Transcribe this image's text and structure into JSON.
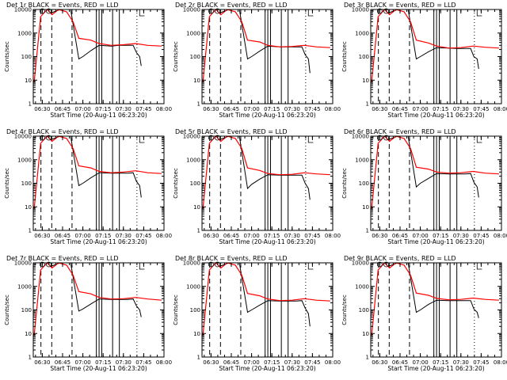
{
  "chart_data": {
    "type": "line",
    "shared": {
      "ylabel": "Counts/sec",
      "xlabel": "Start Time (20-Aug-11 06:23:20)",
      "ylog": true,
      "ylim": [
        1,
        10000
      ],
      "yticks": [
        "1",
        "10",
        "100",
        "1000",
        "10000"
      ],
      "xlim_minutes": [
        "06:23:20",
        "08:00"
      ],
      "xticks": [
        "06:30",
        "06:45",
        "07:00",
        "07:15",
        "07:30",
        "07:45",
        "08:00"
      ],
      "colors": {
        "events": "#000000",
        "lld": "#ff0000",
        "axes": "#000000"
      },
      "grid": false
    },
    "panels": [
      {
        "title": "Det 1r BLACK = Events, RED = LLD",
        "dashed_x": [
          "06:29",
          "06:37",
          "06:52"
        ],
        "solid_x": [
          "07:10",
          "07:12",
          "07:14",
          "07:22",
          "07:27"
        ],
        "dotted_x": [
          "07:40"
        ],
        "events": [
          [
            6.6,
            7000
          ],
          [
            6.72,
            10000
          ],
          [
            6.85,
            10000
          ],
          [
            6.95,
            80
          ],
          [
            7.0,
            100
          ],
          [
            7.1,
            180
          ],
          [
            7.2,
            300
          ],
          [
            7.35,
            280
          ],
          [
            7.45,
            300
          ],
          [
            7.55,
            300
          ],
          [
            7.62,
            300
          ],
          [
            7.66,
            150
          ],
          [
            7.7,
            100
          ],
          [
            7.72,
            40
          ]
        ],
        "lld": [
          [
            6.4,
            8
          ],
          [
            6.48,
            5000
          ],
          [
            6.56,
            10000
          ],
          [
            6.62,
            6000
          ],
          [
            6.7,
            10000
          ],
          [
            6.8,
            8000
          ],
          [
            6.88,
            3000
          ],
          [
            6.95,
            600
          ],
          [
            7.1,
            500
          ],
          [
            7.2,
            360
          ],
          [
            7.35,
            300
          ],
          [
            7.5,
            320
          ],
          [
            7.65,
            360
          ],
          [
            7.8,
            300
          ],
          [
            7.97,
            280
          ]
        ]
      },
      {
        "title": "Det 2r BLACK = Events, RED = LLD",
        "dashed_x": [
          "06:29",
          "06:37",
          "06:52"
        ],
        "solid_x": [
          "07:10",
          "07:12",
          "07:14",
          "07:22",
          "07:27"
        ],
        "dotted_x": [
          "07:40"
        ],
        "events": [
          [
            6.6,
            7000
          ],
          [
            6.72,
            10000
          ],
          [
            6.85,
            10000
          ],
          [
            6.95,
            80
          ],
          [
            7.0,
            100
          ],
          [
            7.1,
            170
          ],
          [
            7.2,
            280
          ],
          [
            7.35,
            260
          ],
          [
            7.45,
            260
          ],
          [
            7.55,
            260
          ],
          [
            7.62,
            260
          ],
          [
            7.66,
            120
          ],
          [
            7.7,
            80
          ],
          [
            7.72,
            20
          ]
        ],
        "lld": [
          [
            6.4,
            8
          ],
          [
            6.48,
            5000
          ],
          [
            6.56,
            10000
          ],
          [
            6.62,
            6000
          ],
          [
            6.7,
            10000
          ],
          [
            6.8,
            8000
          ],
          [
            6.88,
            3000
          ],
          [
            6.95,
            500
          ],
          [
            7.1,
            420
          ],
          [
            7.2,
            300
          ],
          [
            7.35,
            260
          ],
          [
            7.5,
            270
          ],
          [
            7.65,
            300
          ],
          [
            7.8,
            260
          ],
          [
            7.97,
            240
          ]
        ]
      },
      {
        "title": "Det 3r BLACK = Events, RED = LLD",
        "dashed_x": [
          "06:29",
          "06:37",
          "06:52"
        ],
        "solid_x": [
          "07:10",
          "07:12",
          "07:14",
          "07:22",
          "07:27"
        ],
        "dotted_x": [
          "07:40"
        ],
        "events": [
          [
            6.6,
            7000
          ],
          [
            6.72,
            10000
          ],
          [
            6.85,
            10000
          ],
          [
            6.95,
            80
          ],
          [
            7.0,
            100
          ],
          [
            7.1,
            160
          ],
          [
            7.2,
            240
          ],
          [
            7.35,
            230
          ],
          [
            7.45,
            220
          ],
          [
            7.55,
            220
          ],
          [
            7.62,
            220
          ],
          [
            7.66,
            100
          ],
          [
            7.7,
            80
          ],
          [
            7.72,
            30
          ]
        ],
        "lld": [
          [
            6.4,
            8
          ],
          [
            6.48,
            5000
          ],
          [
            6.56,
            10000
          ],
          [
            6.62,
            6000
          ],
          [
            6.7,
            10000
          ],
          [
            6.8,
            8000
          ],
          [
            6.88,
            3000
          ],
          [
            6.95,
            500
          ],
          [
            7.1,
            380
          ],
          [
            7.2,
            280
          ],
          [
            7.35,
            230
          ],
          [
            7.5,
            240
          ],
          [
            7.65,
            280
          ],
          [
            7.8,
            250
          ],
          [
            7.97,
            230
          ]
        ]
      },
      {
        "title": "Det 4r BLACK = Events, RED = LLD",
        "dashed_x": [
          "06:29",
          "06:37",
          "06:52"
        ],
        "solid_x": [
          "07:10",
          "07:12",
          "07:14",
          "07:22",
          "07:27"
        ],
        "dotted_x": [
          "07:40"
        ],
        "events": [
          [
            6.6,
            7000
          ],
          [
            6.72,
            10000
          ],
          [
            6.85,
            10000
          ],
          [
            6.95,
            80
          ],
          [
            7.0,
            100
          ],
          [
            7.1,
            170
          ],
          [
            7.2,
            280
          ],
          [
            7.35,
            270
          ],
          [
            7.45,
            270
          ],
          [
            7.55,
            270
          ],
          [
            7.62,
            280
          ],
          [
            7.66,
            120
          ],
          [
            7.7,
            80
          ],
          [
            7.72,
            25
          ]
        ],
        "lld": [
          [
            6.4,
            8
          ],
          [
            6.48,
            5000
          ],
          [
            6.56,
            10000
          ],
          [
            6.62,
            6000
          ],
          [
            6.7,
            10000
          ],
          [
            6.8,
            8000
          ],
          [
            6.88,
            3000
          ],
          [
            6.95,
            550
          ],
          [
            7.1,
            450
          ],
          [
            7.2,
            320
          ],
          [
            7.35,
            280
          ],
          [
            7.5,
            300
          ],
          [
            7.65,
            340
          ],
          [
            7.8,
            280
          ],
          [
            7.97,
            260
          ]
        ]
      },
      {
        "title": "Det 5r BLACK = Events, RED = LLD",
        "dashed_x": [
          "06:29",
          "06:37",
          "06:52"
        ],
        "solid_x": [
          "07:10",
          "07:12",
          "07:14",
          "07:22",
          "07:27"
        ],
        "dotted_x": [
          "07:40"
        ],
        "events": [
          [
            6.6,
            7000
          ],
          [
            6.72,
            10000
          ],
          [
            6.85,
            10000
          ],
          [
            6.95,
            60
          ],
          [
            7.0,
            90
          ],
          [
            7.1,
            150
          ],
          [
            7.2,
            230
          ],
          [
            7.35,
            220
          ],
          [
            7.45,
            220
          ],
          [
            7.55,
            220
          ],
          [
            7.62,
            220
          ],
          [
            7.66,
            100
          ],
          [
            7.7,
            60
          ],
          [
            7.72,
            20
          ]
        ],
        "lld": [
          [
            6.4,
            8
          ],
          [
            6.48,
            5000
          ],
          [
            6.56,
            10000
          ],
          [
            6.62,
            6000
          ],
          [
            6.7,
            10000
          ],
          [
            6.8,
            8000
          ],
          [
            6.88,
            3000
          ],
          [
            6.95,
            450
          ],
          [
            7.1,
            350
          ],
          [
            7.2,
            260
          ],
          [
            7.35,
            230
          ],
          [
            7.5,
            240
          ],
          [
            7.65,
            280
          ],
          [
            7.8,
            250
          ],
          [
            7.97,
            230
          ]
        ]
      },
      {
        "title": "Det 6r BLACK = Events, RED = LLD",
        "dashed_x": [
          "06:29",
          "06:37",
          "06:52"
        ],
        "solid_x": [
          "07:10",
          "07:12",
          "07:14",
          "07:22",
          "07:27"
        ],
        "dotted_x": [
          "07:40"
        ],
        "events": [
          [
            6.6,
            7000
          ],
          [
            6.72,
            10000
          ],
          [
            6.85,
            10000
          ],
          [
            6.95,
            70
          ],
          [
            7.0,
            100
          ],
          [
            7.1,
            160
          ],
          [
            7.2,
            260
          ],
          [
            7.35,
            250
          ],
          [
            7.45,
            250
          ],
          [
            7.55,
            250
          ],
          [
            7.62,
            260
          ],
          [
            7.66,
            110
          ],
          [
            7.7,
            70
          ],
          [
            7.72,
            25
          ]
        ],
        "lld": [
          [
            6.4,
            8
          ],
          [
            6.48,
            5000
          ],
          [
            6.56,
            10000
          ],
          [
            6.62,
            6000
          ],
          [
            6.7,
            10000
          ],
          [
            6.8,
            8000
          ],
          [
            6.88,
            3000
          ],
          [
            6.95,
            480
          ],
          [
            7.1,
            400
          ],
          [
            7.2,
            300
          ],
          [
            7.35,
            270
          ],
          [
            7.5,
            280
          ],
          [
            7.65,
            320
          ],
          [
            7.8,
            270
          ],
          [
            7.97,
            250
          ]
        ]
      },
      {
        "title": "Det 7r BLACK = Events, RED = LLD",
        "dashed_x": [
          "06:29",
          "06:37",
          "06:52"
        ],
        "solid_x": [
          "07:10",
          "07:12",
          "07:14",
          "07:22",
          "07:27"
        ],
        "dotted_x": [
          "07:40"
        ],
        "events": [
          [
            6.6,
            7000
          ],
          [
            6.72,
            10000
          ],
          [
            6.85,
            10000
          ],
          [
            6.95,
            90
          ],
          [
            7.0,
            110
          ],
          [
            7.1,
            180
          ],
          [
            7.2,
            290
          ],
          [
            7.35,
            280
          ],
          [
            7.45,
            280
          ],
          [
            7.55,
            280
          ],
          [
            7.62,
            290
          ],
          [
            7.66,
            150
          ],
          [
            7.7,
            100
          ],
          [
            7.72,
            50
          ]
        ],
        "lld": [
          [
            6.4,
            8
          ],
          [
            6.48,
            5000
          ],
          [
            6.56,
            10000
          ],
          [
            6.62,
            6000
          ],
          [
            6.7,
            10000
          ],
          [
            6.8,
            8000
          ],
          [
            6.88,
            3000
          ],
          [
            6.95,
            600
          ],
          [
            7.1,
            480
          ],
          [
            7.2,
            340
          ],
          [
            7.35,
            290
          ],
          [
            7.5,
            300
          ],
          [
            7.65,
            340
          ],
          [
            7.8,
            290
          ],
          [
            7.97,
            260
          ]
        ]
      },
      {
        "title": "Det 8r BLACK = Events, RED = LLD",
        "dashed_x": [
          "06:29",
          "06:37",
          "06:52"
        ],
        "solid_x": [
          "07:10",
          "07:12",
          "07:14",
          "07:22",
          "07:27"
        ],
        "dotted_x": [
          "07:40"
        ],
        "events": [
          [
            6.6,
            7000
          ],
          [
            6.72,
            10000
          ],
          [
            6.85,
            10000
          ],
          [
            6.95,
            80
          ],
          [
            7.0,
            100
          ],
          [
            7.1,
            160
          ],
          [
            7.2,
            250
          ],
          [
            7.35,
            240
          ],
          [
            7.45,
            240
          ],
          [
            7.55,
            240
          ],
          [
            7.62,
            250
          ],
          [
            7.66,
            120
          ],
          [
            7.7,
            70
          ],
          [
            7.72,
            20
          ]
        ],
        "lld": [
          [
            6.4,
            8
          ],
          [
            6.48,
            5000
          ],
          [
            6.56,
            10000
          ],
          [
            6.62,
            6000
          ],
          [
            6.7,
            10000
          ],
          [
            6.8,
            8000
          ],
          [
            6.88,
            3000
          ],
          [
            6.95,
            500
          ],
          [
            7.1,
            400
          ],
          [
            7.2,
            290
          ],
          [
            7.35,
            250
          ],
          [
            7.5,
            260
          ],
          [
            7.65,
            300
          ],
          [
            7.8,
            260
          ],
          [
            7.97,
            240
          ]
        ]
      },
      {
        "title": "Det 9r BLACK = Events, RED = LLD",
        "dashed_x": [
          "06:29",
          "06:37",
          "06:52"
        ],
        "solid_x": [
          "07:10",
          "07:12",
          "07:14",
          "07:22",
          "07:27"
        ],
        "dotted_x": [
          "07:40"
        ],
        "events": [
          [
            6.6,
            7000
          ],
          [
            6.72,
            10000
          ],
          [
            6.85,
            10000
          ],
          [
            6.95,
            80
          ],
          [
            7.0,
            100
          ],
          [
            7.1,
            170
          ],
          [
            7.2,
            260
          ],
          [
            7.35,
            250
          ],
          [
            7.45,
            250
          ],
          [
            7.55,
            250
          ],
          [
            7.62,
            250
          ],
          [
            7.66,
            110
          ],
          [
            7.7,
            80
          ],
          [
            7.72,
            45
          ]
        ],
        "lld": [
          [
            6.4,
            8
          ],
          [
            6.48,
            5000
          ],
          [
            6.56,
            10000
          ],
          [
            6.62,
            6000
          ],
          [
            6.7,
            10000
          ],
          [
            6.8,
            8000
          ],
          [
            6.88,
            3000
          ],
          [
            6.95,
            520
          ],
          [
            7.1,
            420
          ],
          [
            7.2,
            310
          ],
          [
            7.35,
            270
          ],
          [
            7.5,
            280
          ],
          [
            7.65,
            320
          ],
          [
            7.8,
            280
          ],
          [
            7.97,
            260
          ]
        ]
      }
    ]
  }
}
